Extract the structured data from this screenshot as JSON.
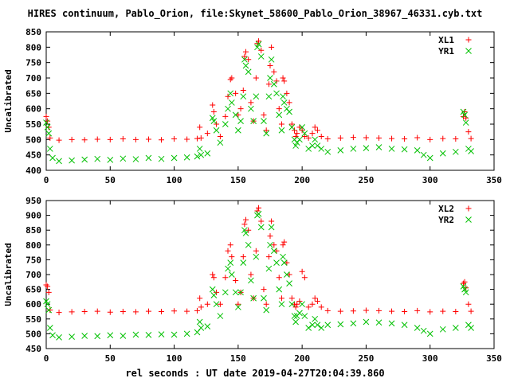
{
  "title": "HIRES continuum, Pablo_Orion, file:Skynet_58600_Pablo_Orion_38967_46331.cyb.txt",
  "xlabel": "rel seconds : UT date 2019-04-27T20:04:39.860",
  "chart_data": [
    {
      "type": "scatter",
      "ylabel": "Uncalibrated",
      "xlim": [
        0,
        350
      ],
      "ylim": [
        400,
        850
      ],
      "xticks": [
        0,
        50,
        100,
        150,
        200,
        250,
        300,
        350
      ],
      "yticks": [
        400,
        450,
        500,
        550,
        600,
        650,
        700,
        750,
        800,
        850
      ],
      "legend_position": "top-right",
      "series": [
        {
          "name": "XL1",
          "marker": "plus",
          "color": "#ff0000",
          "x": [
            0,
            1,
            2,
            3,
            10,
            20,
            30,
            40,
            50,
            60,
            70,
            80,
            90,
            100,
            110,
            118,
            120,
            121,
            126,
            130,
            131,
            133,
            136,
            140,
            142,
            144,
            145,
            148,
            150,
            152,
            154,
            155,
            156,
            158,
            160,
            162,
            164,
            165,
            166,
            168,
            170,
            172,
            174,
            175,
            176,
            178,
            180,
            182,
            184,
            185,
            186,
            188,
            190,
            192,
            194,
            195,
            196,
            198,
            200,
            202,
            205,
            208,
            210,
            212,
            215,
            220,
            230,
            240,
            250,
            260,
            270,
            280,
            290,
            300,
            310,
            320,
            326,
            327,
            328,
            330,
            332
          ],
          "y": [
            575,
            560,
            540,
            505,
            498,
            500,
            499,
            501,
            500,
            502,
            500,
            501,
            499,
            502,
            501,
            503,
            540,
            505,
            520,
            612,
            590,
            550,
            510,
            575,
            640,
            695,
            700,
            650,
            580,
            600,
            660,
            770,
            785,
            760,
            620,
            560,
            700,
            812,
            820,
            790,
            580,
            530,
            680,
            740,
            800,
            720,
            690,
            600,
            550,
            700,
            690,
            650,
            620,
            550,
            530,
            510,
            520,
            540,
            530,
            510,
            505,
            520,
            540,
            530,
            510,
            502,
            505,
            507,
            506,
            505,
            503,
            502,
            506,
            500,
            503,
            502,
            575,
            590,
            570,
            525,
            503
          ]
        },
        {
          "name": "YR1",
          "marker": "cross",
          "color": "#00c000",
          "x": [
            0,
            1,
            2,
            3,
            5,
            10,
            20,
            30,
            40,
            50,
            60,
            70,
            80,
            90,
            100,
            110,
            118,
            120,
            121,
            126,
            130,
            131,
            133,
            136,
            140,
            142,
            144,
            145,
            148,
            150,
            152,
            154,
            155,
            156,
            158,
            160,
            162,
            164,
            165,
            166,
            168,
            170,
            172,
            174,
            175,
            176,
            178,
            180,
            182,
            184,
            185,
            186,
            188,
            190,
            192,
            194,
            195,
            196,
            198,
            200,
            202,
            205,
            208,
            210,
            212,
            215,
            220,
            230,
            240,
            250,
            260,
            270,
            280,
            290,
            295,
            300,
            310,
            320,
            326,
            327,
            328,
            330,
            332
          ],
          "y": [
            555,
            540,
            520,
            470,
            440,
            430,
            432,
            435,
            437,
            434,
            438,
            436,
            440,
            437,
            440,
            442,
            445,
            470,
            450,
            455,
            570,
            560,
            530,
            490,
            550,
            600,
            650,
            620,
            580,
            530,
            560,
            640,
            760,
            740,
            720,
            600,
            560,
            640,
            800,
            810,
            770,
            560,
            520,
            640,
            700,
            760,
            680,
            650,
            580,
            530,
            640,
            620,
            600,
            590,
            540,
            500,
            480,
            490,
            500,
            540,
            520,
            470,
            480,
            500,
            480,
            470,
            460,
            465,
            470,
            472,
            475,
            470,
            468,
            465,
            450,
            440,
            455,
            460,
            590,
            580,
            555,
            470,
            462
          ]
        }
      ]
    },
    {
      "type": "scatter",
      "ylabel": "Uncalibrated",
      "xlim": [
        0,
        350
      ],
      "ylim": [
        450,
        950
      ],
      "xticks": [
        0,
        50,
        100,
        150,
        200,
        250,
        300,
        350
      ],
      "yticks": [
        450,
        500,
        550,
        600,
        650,
        700,
        750,
        800,
        850,
        900,
        950
      ],
      "legend_position": "top-right",
      "series": [
        {
          "name": "XL2",
          "marker": "plus",
          "color": "#ff0000",
          "x": [
            0,
            1,
            2,
            3,
            10,
            20,
            30,
            40,
            50,
            60,
            70,
            80,
            90,
            100,
            110,
            118,
            120,
            121,
            126,
            130,
            131,
            133,
            136,
            140,
            142,
            144,
            145,
            148,
            150,
            152,
            154,
            155,
            156,
            158,
            160,
            162,
            164,
            165,
            166,
            168,
            170,
            172,
            174,
            175,
            176,
            178,
            180,
            182,
            184,
            185,
            186,
            188,
            190,
            192,
            194,
            195,
            196,
            198,
            200,
            202,
            205,
            208,
            210,
            212,
            215,
            220,
            230,
            240,
            250,
            260,
            270,
            280,
            290,
            300,
            310,
            320,
            326,
            327,
            328,
            330,
            332
          ],
          "y": [
            665,
            660,
            640,
            580,
            572,
            574,
            575,
            576,
            573,
            575,
            574,
            576,
            575,
            577,
            576,
            578,
            620,
            590,
            600,
            700,
            690,
            640,
            600,
            690,
            780,
            800,
            760,
            680,
            600,
            640,
            760,
            870,
            885,
            850,
            700,
            620,
            780,
            915,
            925,
            880,
            650,
            600,
            760,
            830,
            880,
            800,
            780,
            690,
            620,
            800,
            810,
            740,
            700,
            620,
            600,
            590,
            600,
            610,
            710,
            690,
            590,
            600,
            620,
            610,
            590,
            578,
            576,
            577,
            579,
            578,
            576,
            575,
            578,
            574,
            576,
            575,
            670,
            675,
            655,
            600,
            576
          ]
        },
        {
          "name": "YR2",
          "marker": "cross",
          "color": "#00c000",
          "x": [
            0,
            1,
            2,
            3,
            5,
            10,
            20,
            30,
            40,
            50,
            60,
            70,
            80,
            90,
            100,
            110,
            118,
            120,
            121,
            126,
            130,
            131,
            133,
            136,
            140,
            142,
            144,
            145,
            148,
            150,
            152,
            154,
            155,
            156,
            158,
            160,
            162,
            164,
            165,
            166,
            168,
            170,
            172,
            174,
            175,
            176,
            178,
            180,
            182,
            184,
            185,
            186,
            188,
            190,
            192,
            194,
            195,
            196,
            198,
            200,
            202,
            205,
            208,
            210,
            212,
            215,
            220,
            230,
            240,
            250,
            260,
            270,
            280,
            290,
            295,
            300,
            310,
            320,
            326,
            327,
            328,
            330,
            332
          ],
          "y": [
            610,
            600,
            580,
            520,
            495,
            488,
            490,
            493,
            492,
            495,
            493,
            497,
            496,
            498,
            497,
            500,
            505,
            540,
            520,
            525,
            650,
            630,
            600,
            560,
            640,
            720,
            740,
            700,
            640,
            590,
            640,
            740,
            850,
            840,
            800,
            680,
            620,
            760,
            900,
            905,
            860,
            620,
            580,
            720,
            800,
            860,
            780,
            740,
            650,
            600,
            760,
            740,
            700,
            670,
            600,
            560,
            540,
            560,
            570,
            600,
            560,
            520,
            530,
            550,
            530,
            520,
            530,
            532,
            535,
            540,
            538,
            535,
            530,
            520,
            510,
            500,
            515,
            520,
            660,
            650,
            640,
            530,
            520
          ]
        }
      ]
    }
  ]
}
